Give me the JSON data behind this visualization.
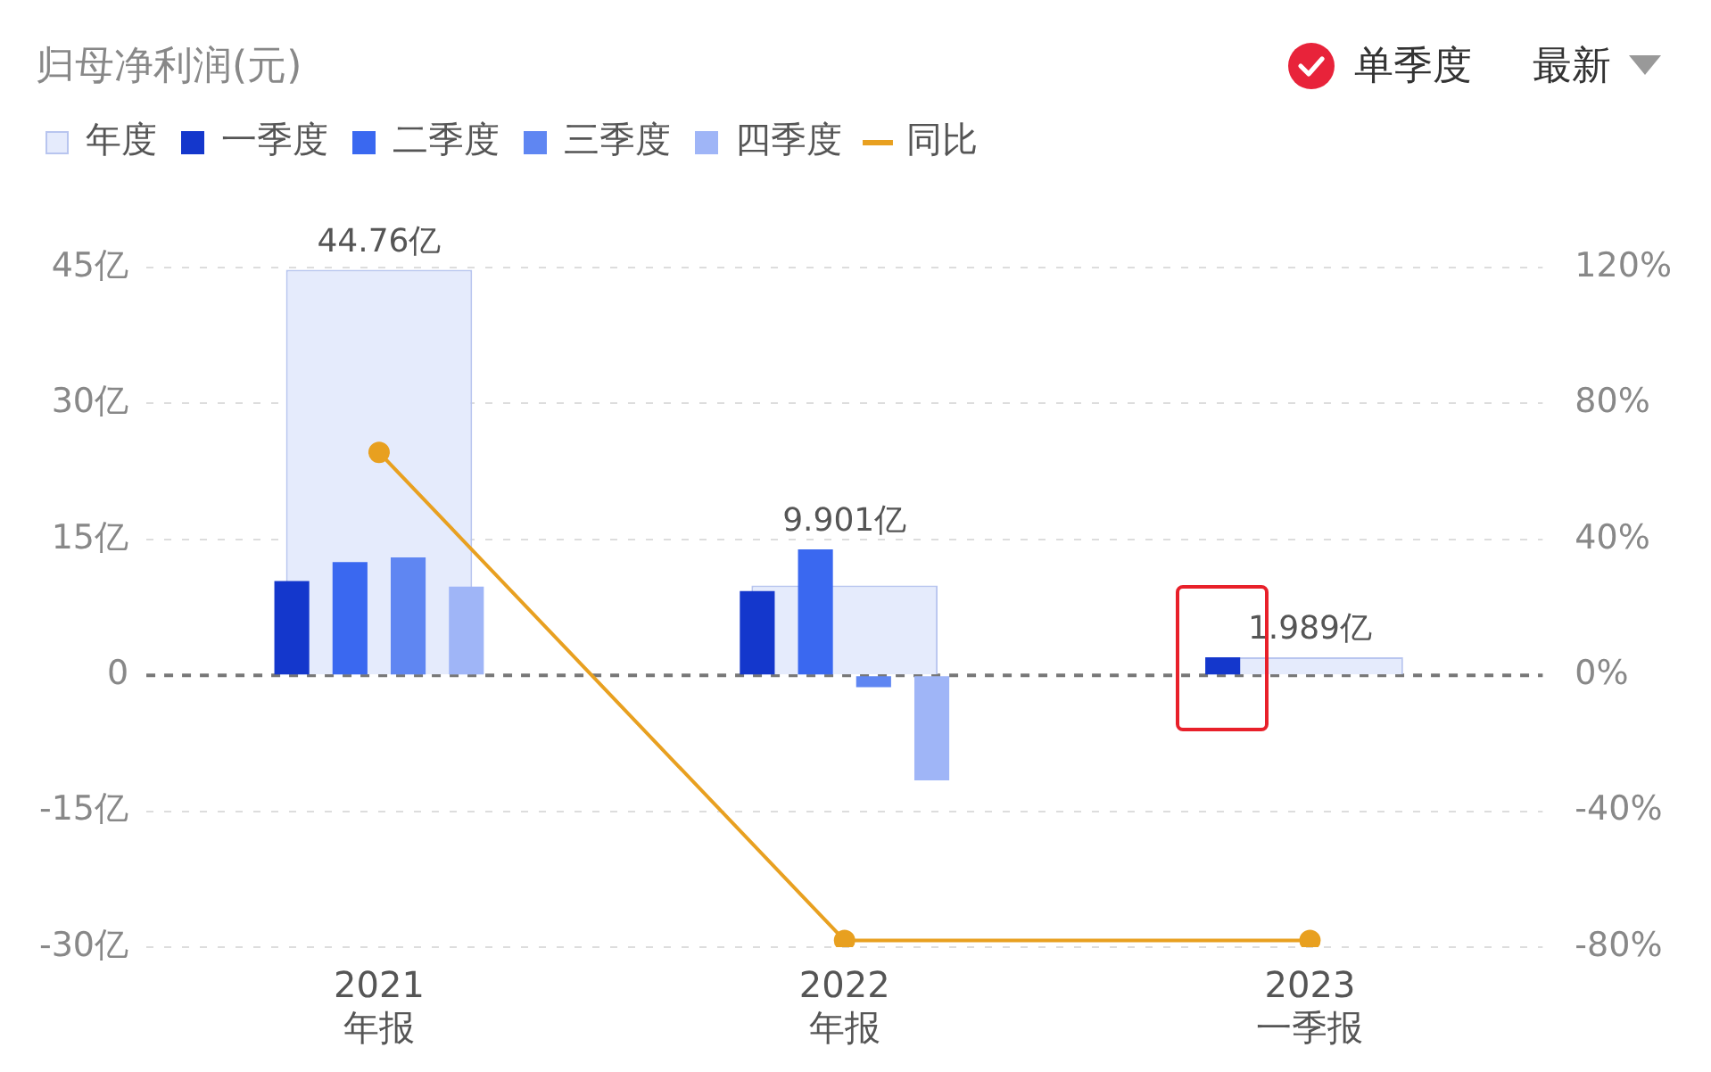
{
  "chart_data": {
    "type": "bar",
    "title": "归母净利润(元)",
    "categories": [
      "2021\n年报",
      "2022\n年报",
      "2023\n一季报"
    ],
    "series": [
      {
        "name": "年度",
        "color": "#e5ebfc",
        "values": [
          44.76,
          9.901,
          1.989
        ],
        "value_labels": [
          "44.76亿",
          "9.901亿",
          "1.989亿"
        ]
      },
      {
        "name": "一季度",
        "color": "#1437cc",
        "values": [
          10.4,
          9.3,
          2.0
        ]
      },
      {
        "name": "二季度",
        "color": "#3a68f0",
        "values": [
          12.5,
          13.9,
          null
        ]
      },
      {
        "name": "三季度",
        "color": "#5f86f2",
        "values": [
          13.0,
          -1.3,
          null
        ]
      },
      {
        "name": "四季度",
        "color": "#9fb5f7",
        "values": [
          9.8,
          -11.6,
          null
        ]
      },
      {
        "name": "同比",
        "type": "line",
        "axis": "y2",
        "color": "#e8a020",
        "values": [
          65.6,
          -78,
          -78
        ]
      }
    ],
    "ylim": [
      -30,
      45
    ],
    "yticks": [
      {
        "value": -30,
        "label": "-30亿"
      },
      {
        "value": -15,
        "label": "-15亿"
      },
      {
        "value": 0,
        "label": "0"
      },
      {
        "value": 15,
        "label": "15亿"
      },
      {
        "value": 30,
        "label": "30亿"
      },
      {
        "value": 45,
        "label": "45亿"
      }
    ],
    "y2lim": [
      -80,
      120
    ],
    "y2ticks": [
      {
        "value": -80,
        "label": "-80%"
      },
      {
        "value": -40,
        "label": "-40%"
      },
      {
        "value": 0,
        "label": "0%"
      },
      {
        "value": 40,
        "label": "40%"
      },
      {
        "value": 80,
        "label": "80%"
      },
      {
        "value": 120,
        "label": "120%"
      }
    ],
    "ref_lines": [
      {
        "axis": "y",
        "value": 0,
        "color": "#777777",
        "line_style": "dashed"
      }
    ],
    "grid": "y",
    "legend": "top left",
    "marker": "circle",
    "annotations": [
      "单季度",
      "最新"
    ]
  }
}
